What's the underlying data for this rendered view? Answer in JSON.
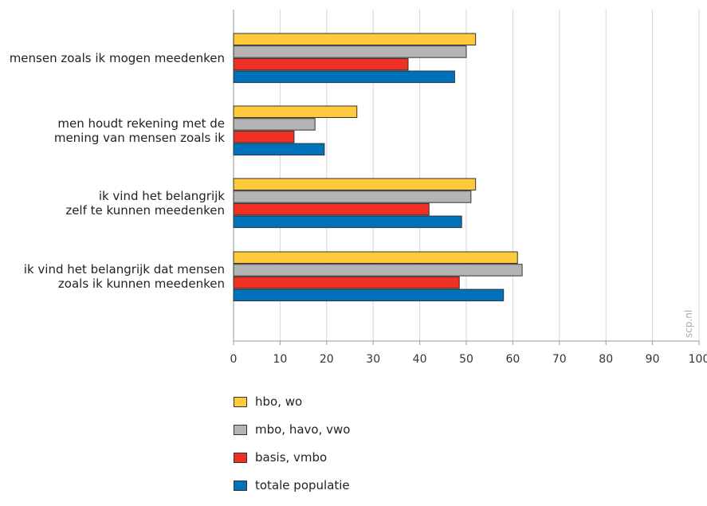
{
  "chart_data": {
    "type": "bar",
    "orientation": "horizontal",
    "categories": [
      [
        "mensen zoals ik mogen meedenken"
      ],
      [
        "men houdt rekening met de",
        "mening van mensen zoals ik"
      ],
      [
        "ik vind het belangrijk",
        "zelf te kunnen meedenken"
      ],
      [
        "ik vind het belangrijk dat mensen",
        "zoals ik kunnen meedenken"
      ]
    ],
    "series": [
      {
        "name": "hbo, wo",
        "color": "#ffc93c",
        "values": [
          52,
          26.5,
          52,
          61
        ]
      },
      {
        "name": "mbo, havo, vwo",
        "color": "#b4b4b4",
        "values": [
          50,
          17.5,
          51,
          62
        ]
      },
      {
        "name": "basis, vmbo",
        "color": "#ee3124",
        "values": [
          37.5,
          13,
          42,
          48.5
        ]
      },
      {
        "name": "totale populatie",
        "color": "#0072bc",
        "values": [
          47.5,
          19.5,
          49,
          58
        ]
      }
    ],
    "xlim": [
      0,
      100
    ],
    "xticks": [
      "0",
      "10",
      "20",
      "30",
      "40",
      "50",
      "60",
      "70",
      "80",
      "90",
      "100"
    ],
    "grid": "vertical",
    "legend": "bottom",
    "watermark": "scp.nl"
  }
}
